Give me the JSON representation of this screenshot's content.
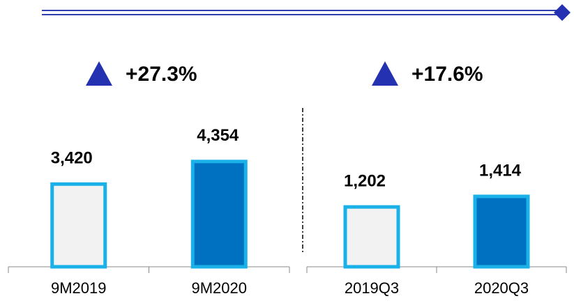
{
  "chart_data": [
    {
      "type": "bar",
      "categories": [
        "9M2019",
        "9M2020"
      ],
      "values": [
        3420,
        4354
      ],
      "value_labels": [
        "3,420",
        "4,354"
      ],
      "colors": [
        "#f2f2f2",
        "#0070c0"
      ],
      "edgecolor": "#1ab0e8",
      "ylim": [
        0,
        7000
      ],
      "annotation": "+27.3%"
    },
    {
      "type": "bar",
      "categories": [
        "2019Q3",
        "2020Q3"
      ],
      "values": [
        1202,
        1414
      ],
      "value_labels": [
        "1,202",
        "1,414"
      ],
      "colors": [
        "#f2f2f2",
        "#0070c0"
      ],
      "edgecolor": "#1ab0e8",
      "ylim": [
        0,
        3400
      ],
      "annotation": "+17.6%"
    }
  ]
}
